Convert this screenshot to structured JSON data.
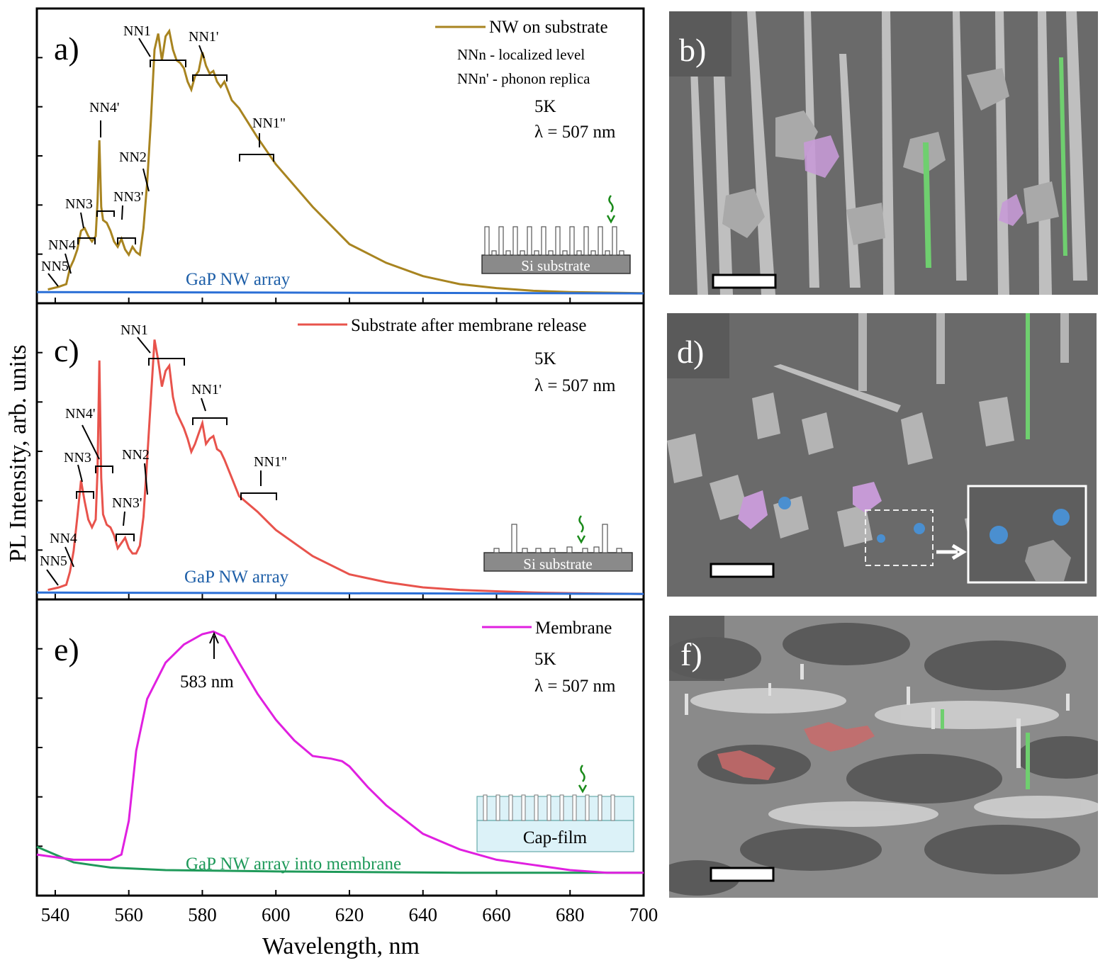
{
  "chart_data": [
    {
      "panel_label": "a)",
      "type": "line",
      "x_range": [
        535,
        700
      ],
      "series": [
        {
          "name": "NW on substrate",
          "color": "#a88420",
          "x": [
            538,
            541,
            543,
            544,
            545,
            546,
            547,
            548,
            549,
            550,
            551,
            551.5,
            552,
            552.5,
            553,
            554,
            555,
            556,
            557,
            558,
            559,
            560,
            561,
            562,
            563,
            564,
            565,
            566,
            567,
            568,
            569,
            570,
            571,
            572,
            573,
            574,
            575,
            576,
            577,
            578,
            579,
            580,
            581,
            582,
            583,
            584,
            585,
            586,
            588,
            590,
            595,
            600,
            610,
            620,
            630,
            640,
            650,
            660,
            670,
            680,
            690,
            700
          ],
          "y": [
            0.02,
            0.03,
            0.04,
            0.1,
            0.13,
            0.17,
            0.24,
            0.25,
            0.22,
            0.2,
            0.22,
            0.35,
            0.58,
            0.33,
            0.28,
            0.27,
            0.24,
            0.2,
            0.18,
            0.21,
            0.17,
            0.15,
            0.18,
            0.16,
            0.15,
            0.25,
            0.42,
            0.65,
            0.92,
            0.98,
            0.88,
            0.97,
            0.99,
            0.92,
            0.88,
            0.87,
            0.85,
            0.8,
            0.77,
            0.82,
            0.84,
            0.91,
            0.86,
            0.83,
            0.84,
            0.8,
            0.78,
            0.8,
            0.73,
            0.7,
            0.59,
            0.49,
            0.33,
            0.19,
            0.12,
            0.07,
            0.04,
            0.025,
            0.015,
            0.01,
            0.008,
            0.006
          ]
        },
        {
          "name": "GaP NW array",
          "color": "#2b6fd6",
          "x": [
            535,
            700
          ],
          "y": [
            0.01,
            0.005
          ]
        }
      ],
      "annotations": [
        "NN1",
        "NN1'",
        "NN1\"",
        "NN2",
        "NN3",
        "NN3'",
        "NN4",
        "NN4'",
        "NN5"
      ],
      "legend_notes": [
        "NNn - localized level",
        "NNn' - phonon replica"
      ],
      "conditions": [
        "5K",
        "λ = 507 nm"
      ],
      "inset_label": "Si substrate"
    },
    {
      "panel_label": "c)",
      "type": "line",
      "x_range": [
        535,
        700
      ],
      "series": [
        {
          "name": "Substrate after membrane release",
          "color": "#e8534c",
          "x": [
            538,
            541,
            543,
            544,
            545,
            546,
            547,
            548,
            549,
            550,
            551,
            551.5,
            552,
            552.5,
            553,
            554,
            555,
            556,
            557,
            558,
            559,
            560,
            561,
            562,
            563,
            564,
            565,
            566,
            567,
            568,
            569,
            570,
            571,
            572,
            573,
            574,
            575,
            576,
            577,
            578,
            579,
            580,
            581,
            582,
            583,
            584,
            585,
            586,
            588,
            590,
            595,
            600,
            610,
            620,
            630,
            640,
            650,
            660,
            670,
            680,
            690,
            700
          ],
          "y": [
            0.02,
            0.03,
            0.04,
            0.09,
            0.17,
            0.3,
            0.44,
            0.36,
            0.29,
            0.26,
            0.29,
            0.48,
            0.9,
            0.45,
            0.31,
            0.27,
            0.26,
            0.23,
            0.18,
            0.2,
            0.22,
            0.18,
            0.16,
            0.16,
            0.19,
            0.3,
            0.52,
            0.75,
            0.98,
            0.9,
            0.8,
            0.86,
            0.88,
            0.76,
            0.7,
            0.67,
            0.64,
            0.6,
            0.55,
            0.58,
            0.62,
            0.66,
            0.58,
            0.6,
            0.61,
            0.56,
            0.55,
            0.52,
            0.45,
            0.38,
            0.32,
            0.25,
            0.15,
            0.08,
            0.05,
            0.03,
            0.02,
            0.015,
            0.01,
            0.008,
            0.006,
            0.005
          ]
        },
        {
          "name": "GaP NW array",
          "color": "#2b6fd6",
          "x": [
            535,
            700
          ],
          "y": [
            0.01,
            0.005
          ]
        }
      ],
      "annotations": [
        "NN1",
        "NN1'",
        "NN1\"",
        "NN2",
        "NN3",
        "NN3'",
        "NN4",
        "NN4'",
        "NN5"
      ],
      "conditions": [
        "5K",
        "λ = 507 nm"
      ],
      "inset_label": "Si substrate"
    },
    {
      "panel_label": "e)",
      "type": "line",
      "x_range": [
        535,
        700
      ],
      "xlabel": "Wavelength, nm",
      "x_ticks": [
        540,
        560,
        580,
        600,
        620,
        640,
        660,
        680,
        700
      ],
      "series": [
        {
          "name": "Membrane",
          "color": "#e020e0",
          "x": [
            535,
            545,
            555,
            558,
            560,
            562,
            565,
            570,
            575,
            580,
            583,
            586,
            590,
            595,
            600,
            605,
            610,
            615,
            618,
            620,
            625,
            630,
            640,
            650,
            660,
            670,
            680,
            690,
            700
          ],
          "y": [
            0.12,
            0.1,
            0.1,
            0.12,
            0.25,
            0.52,
            0.72,
            0.86,
            0.93,
            0.97,
            0.98,
            0.96,
            0.86,
            0.74,
            0.64,
            0.56,
            0.5,
            0.49,
            0.48,
            0.46,
            0.38,
            0.31,
            0.2,
            0.14,
            0.1,
            0.08,
            0.06,
            0.05,
            0.05
          ]
        },
        {
          "name": "GaP NW array into membrane",
          "color": "#1f9a5a",
          "x": [
            535,
            540,
            545,
            555,
            570,
            600,
            650,
            700
          ],
          "y": [
            0.15,
            0.12,
            0.09,
            0.07,
            0.06,
            0.055,
            0.05,
            0.05
          ]
        }
      ],
      "annotations": [
        "583 nm"
      ],
      "conditions": [
        "5K",
        "λ = 507 nm"
      ],
      "inset_label": "Cap-film"
    }
  ],
  "ylabel": "PL Intensity, arb. units",
  "sem_panels": [
    "b)",
    "d)",
    "f)"
  ],
  "colors": {
    "frame": "#000000",
    "accent_arrow": "#1a8a1a"
  }
}
